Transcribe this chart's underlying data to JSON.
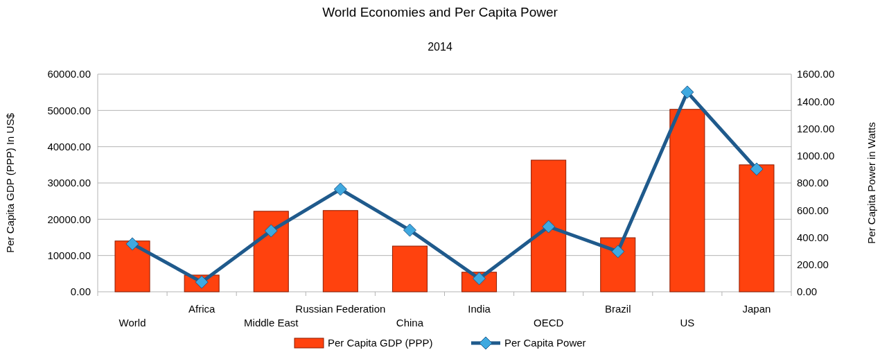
{
  "chart_data": {
    "type": "bar",
    "title": "World Economies and Per Capita Power",
    "subtitle": "2014",
    "ylabel": "Per Capita GDP (PPP) In US$",
    "y2label": "Per Capita Power in Watts",
    "categories": [
      "World",
      "Africa",
      "Middle East",
      "Russian Federation",
      "China",
      "India",
      "OECD",
      "Brazil",
      "US",
      "Japan"
    ],
    "series": [
      {
        "name": "Per Capita GDP (PPP)",
        "color": "#ff420e",
        "values": [
          14000,
          4600,
          22200,
          22400,
          12600,
          5400,
          36300,
          14900,
          50300,
          35000
        ]
      },
      {
        "name": "Per Capita Power",
        "type": "line",
        "axis": "y2",
        "color": "#1f5a8c",
        "marker": "diamond",
        "values": [
          352,
          71,
          448,
          754,
          453,
          97,
          479,
          296,
          1468,
          902
        ]
      }
    ],
    "ylim": [
      0,
      60000
    ],
    "yticks": [
      {
        "value": 0,
        "label": "0.00"
      },
      {
        "value": 10000,
        "label": "10000.00"
      },
      {
        "value": 20000,
        "label": "20000.00"
      },
      {
        "value": 30000,
        "label": "30000.00"
      },
      {
        "value": 40000,
        "label": "40000.00"
      },
      {
        "value": 50000,
        "label": "50000.00"
      },
      {
        "value": 60000,
        "label": "60000.00"
      }
    ],
    "y2lim": [
      0,
      1600
    ],
    "y2ticks": [
      {
        "value": 0,
        "label": "0.00"
      },
      {
        "value": 200,
        "label": "200.00"
      },
      {
        "value": 400,
        "label": "400.00"
      },
      {
        "value": 600,
        "label": "600.00"
      },
      {
        "value": 800,
        "label": "800.00"
      },
      {
        "value": 1000,
        "label": "1000.00"
      },
      {
        "value": 1200,
        "label": "1200.00"
      },
      {
        "value": 1400,
        "label": "1400.00"
      },
      {
        "value": 1600,
        "label": "1600.00"
      }
    ],
    "grid": "y",
    "legend": "bottom",
    "line_style": "solid"
  }
}
